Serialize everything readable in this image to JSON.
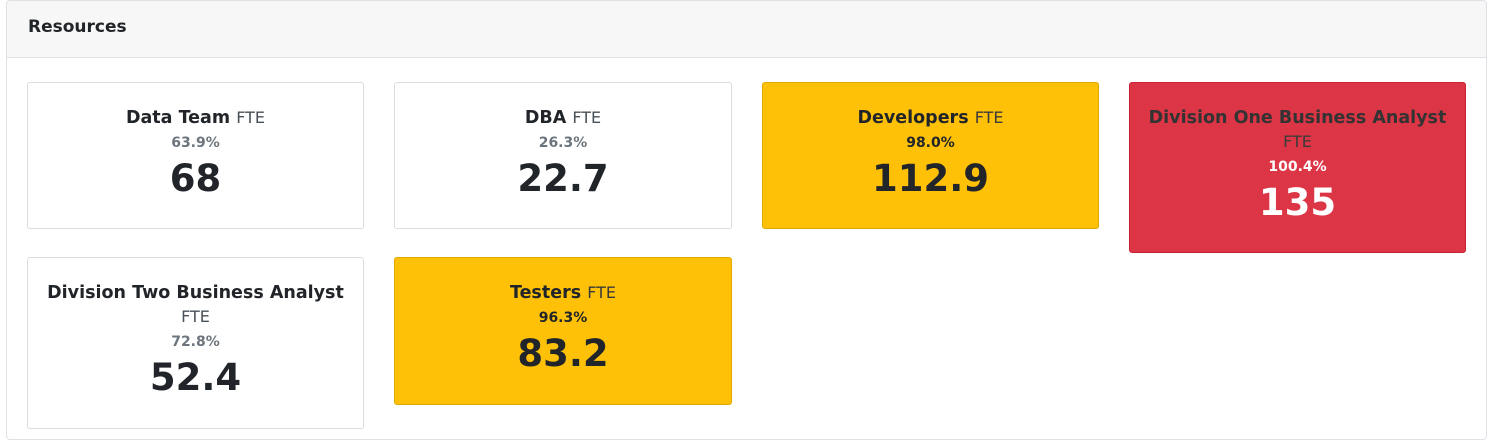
{
  "panel": {
    "title": "Resources"
  },
  "unit_label": "FTE",
  "colors": {
    "warning": "#ffc107",
    "danger": "#dc3545",
    "normal": "#ffffff"
  },
  "cards": [
    {
      "name": "Data Team",
      "unit": "FTE",
      "percent": "63.9%",
      "value": "68",
      "status": "normal"
    },
    {
      "name": "DBA",
      "unit": "FTE",
      "percent": "26.3%",
      "value": "22.7",
      "status": "normal"
    },
    {
      "name": "Developers",
      "unit": "FTE",
      "percent": "98.0%",
      "value": "112.9",
      "status": "warning"
    },
    {
      "name": "Division One Business Analyst",
      "unit": "FTE",
      "percent": "100.4%",
      "value": "135",
      "status": "danger"
    },
    {
      "name": "Division Two Business Analyst",
      "unit": "FTE",
      "percent": "72.8%",
      "value": "52.4",
      "status": "normal"
    },
    {
      "name": "Testers",
      "unit": "FTE",
      "percent": "96.3%",
      "value": "83.2",
      "status": "warning"
    }
  ]
}
